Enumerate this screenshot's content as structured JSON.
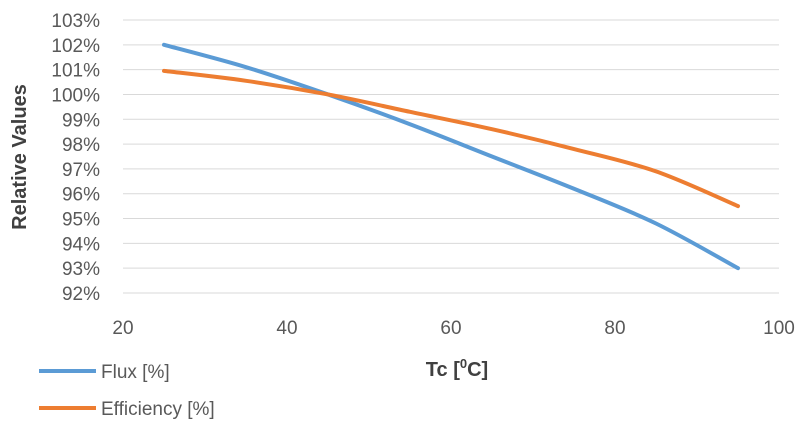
{
  "chart_data": {
    "type": "line",
    "title": "",
    "xlabel": "Tc [°C]",
    "xlabel_base": "Tc [",
    "xlabel_sup": "0",
    "xlabel_tail": "C]",
    "ylabel": "Relative Values",
    "xlim": [
      20,
      100
    ],
    "ylim": [
      92,
      103
    ],
    "x_ticks": [
      20,
      40,
      60,
      80,
      100
    ],
    "y_ticks": [
      92,
      93,
      94,
      95,
      96,
      97,
      98,
      99,
      100,
      101,
      102,
      103
    ],
    "y_tick_suffix": "%",
    "grid": {
      "horizontal": true,
      "vertical": false
    },
    "legend_position": "bottom-left",
    "series": [
      {
        "name": "Flux [%]",
        "color": "#5b9bd5",
        "x": [
          25,
          35,
          45,
          55,
          65,
          75,
          85,
          95
        ],
        "y": [
          102.0,
          101.1,
          100.0,
          98.8,
          97.5,
          96.2,
          94.8,
          93.0
        ]
      },
      {
        "name": "Efficiency [%]",
        "color": "#ed7d31",
        "x": [
          25,
          35,
          45,
          55,
          65,
          75,
          85,
          95
        ],
        "y": [
          100.95,
          100.55,
          100.0,
          99.3,
          98.6,
          97.8,
          96.9,
          95.5
        ]
      }
    ]
  }
}
